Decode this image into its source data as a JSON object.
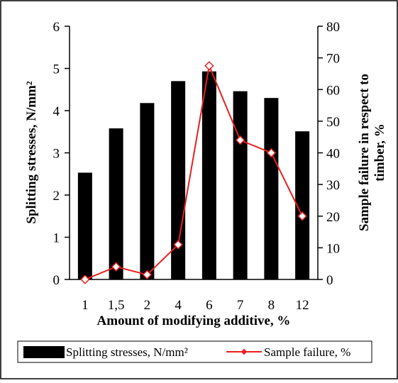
{
  "chart_data": {
    "type": "bar",
    "categories": [
      "1",
      "1,5",
      "2",
      "4",
      "6",
      "7",
      "8",
      "12"
    ],
    "series": [
      {
        "name": "Splitting stresses, N/mm²",
        "type": "bar",
        "axis": "left",
        "color": "#000000",
        "values": [
          2.53,
          3.58,
          4.18,
          4.7,
          4.93,
          4.46,
          4.3,
          3.51
        ]
      },
      {
        "name": "Sample failure, %",
        "type": "line",
        "axis": "right",
        "color": "#e8201e",
        "values": [
          0,
          4,
          1.5,
          11,
          67.5,
          44,
          40,
          20
        ]
      }
    ],
    "xlabel": "Amount of modifying additive, %",
    "ylabel": "Splitting stresses, N/mm²",
    "y2label_line1": "Sample failure in respect to",
    "y2label_line2": "timber, %",
    "ylim": [
      0,
      6
    ],
    "y2lim": [
      0,
      80
    ],
    "yticks": [
      "0",
      "1",
      "2",
      "3",
      "4",
      "5",
      "6"
    ],
    "y2ticks": [
      "0",
      "10",
      "20",
      "30",
      "40",
      "50",
      "60",
      "70",
      "80"
    ],
    "legend_position": "bottom",
    "grid": false
  }
}
